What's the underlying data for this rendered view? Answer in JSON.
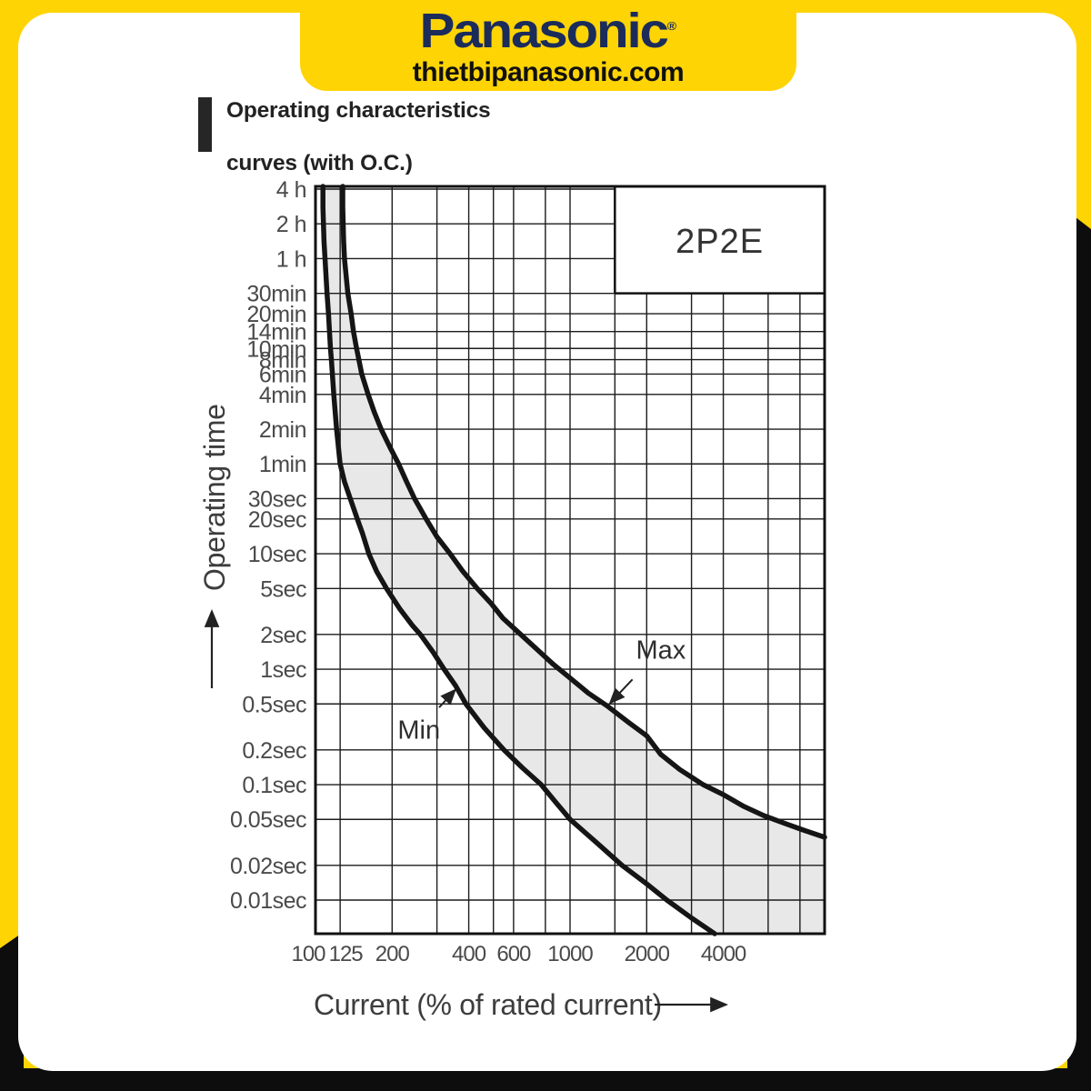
{
  "page": {
    "background_yellow": "#FFD405",
    "frame_black": "#0D0D0D",
    "card_white": "#FFFFFF"
  },
  "banner": {
    "brand": "Panasonic",
    "registered_mark": "®",
    "website": "thietbipanasonic.com",
    "brand_color": "#1B2C5B"
  },
  "section_title": {
    "line1": "Operating characteristics",
    "line2": "curves (with O.C.)"
  },
  "chart_data": {
    "type": "line",
    "model_box_label": "2P2E",
    "xlabel": "Current (% of rated current)",
    "ylabel": "Operating time",
    "x_scale": "log",
    "y_scale": "log",
    "x_min": 100,
    "x_max": 10000,
    "x_ticks_labeled": [
      {
        "label": "100",
        "value": 100
      },
      {
        "label": "125",
        "value": 125
      },
      {
        "label": "200",
        "value": 200
      },
      {
        "label": "400",
        "value": 400
      },
      {
        "label": "600",
        "value": 600
      },
      {
        "label": "1000",
        "value": 1000
      },
      {
        "label": "2000",
        "value": 2000
      },
      {
        "label": "4000",
        "value": 4000
      }
    ],
    "x_gridlines_minor": [
      300,
      500,
      800,
      1500,
      3000,
      6000,
      8000
    ],
    "y_ticks": [
      {
        "label": "4 h",
        "seconds": 14400
      },
      {
        "label": "2 h",
        "seconds": 7200
      },
      {
        "label": "1 h",
        "seconds": 3600
      },
      {
        "label": "30min",
        "seconds": 1800
      },
      {
        "label": "20min",
        "seconds": 1200
      },
      {
        "label": "14min",
        "seconds": 840
      },
      {
        "label": "10min",
        "seconds": 600
      },
      {
        "label": "8min",
        "seconds": 480
      },
      {
        "label": "6min",
        "seconds": 360
      },
      {
        "label": "4min",
        "seconds": 240
      },
      {
        "label": "2min",
        "seconds": 120
      },
      {
        "label": "1min",
        "seconds": 60
      },
      {
        "label": "30sec",
        "seconds": 30
      },
      {
        "label": "20sec",
        "seconds": 20
      },
      {
        "label": "10sec",
        "seconds": 10
      },
      {
        "label": "5sec",
        "seconds": 5
      },
      {
        "label": "2sec",
        "seconds": 2
      },
      {
        "label": "1sec",
        "seconds": 1
      },
      {
        "label": "0.5sec",
        "seconds": 0.5
      },
      {
        "label": "0.2sec",
        "seconds": 0.2
      },
      {
        "label": "0.1sec",
        "seconds": 0.1
      },
      {
        "label": "0.05sec",
        "seconds": 0.05
      },
      {
        "label": "0.02sec",
        "seconds": 0.02
      },
      {
        "label": "0.01sec",
        "seconds": 0.01
      }
    ],
    "model_box": {
      "label": "2P2E",
      "x_from_percent": 1500,
      "time_from_seconds": 1800
    },
    "band_fill": "#E8E8E8",
    "curve_color": "#151515",
    "series": [
      {
        "name": "Min",
        "points": [
          [
            107,
            15300
          ],
          [
            107,
            10000
          ],
          [
            108,
            5000
          ],
          [
            109,
            3600
          ],
          [
            111,
            1800
          ],
          [
            112.5,
            1200
          ],
          [
            113.5,
            840
          ],
          [
            114.5,
            600
          ],
          [
            115.5,
            480
          ],
          [
            116.5,
            360
          ],
          [
            118,
            240
          ],
          [
            121,
            120
          ],
          [
            125,
            60
          ],
          [
            130,
            42
          ],
          [
            137,
            30
          ],
          [
            146,
            20
          ],
          [
            153,
            15
          ],
          [
            162,
            10
          ],
          [
            174,
            7
          ],
          [
            190,
            5
          ],
          [
            215,
            3.3
          ],
          [
            240,
            2.4
          ],
          [
            258,
            2
          ],
          [
            290,
            1.4
          ],
          [
            320,
            1
          ],
          [
            355,
            0.72
          ],
          [
            390,
            0.5
          ],
          [
            460,
            0.31
          ],
          [
            550,
            0.2
          ],
          [
            650,
            0.14
          ],
          [
            770,
            0.1
          ],
          [
            880,
            0.07
          ],
          [
            1000,
            0.05
          ],
          [
            1280,
            0.031
          ],
          [
            1600,
            0.02
          ],
          [
            2000,
            0.0138
          ],
          [
            2400,
            0.01
          ],
          [
            3000,
            0.007
          ],
          [
            3700,
            0.0051
          ]
        ]
      },
      {
        "name": "Max",
        "points": [
          [
            128,
            15300
          ],
          [
            128,
            10000
          ],
          [
            129,
            5000
          ],
          [
            130,
            3600
          ],
          [
            134,
            1800
          ],
          [
            138,
            1200
          ],
          [
            141,
            840
          ],
          [
            145,
            600
          ],
          [
            148,
            480
          ],
          [
            152,
            360
          ],
          [
            161,
            240
          ],
          [
            170,
            170
          ],
          [
            181,
            120
          ],
          [
            196,
            84
          ],
          [
            212,
            60
          ],
          [
            228,
            42
          ],
          [
            245,
            30
          ],
          [
            272,
            20
          ],
          [
            300,
            14
          ],
          [
            338,
            10
          ],
          [
            380,
            7
          ],
          [
            432,
            5
          ],
          [
            490,
            3.7
          ],
          [
            545,
            2.76
          ],
          [
            640,
            2
          ],
          [
            750,
            1.45
          ],
          [
            860,
            1.1
          ],
          [
            1000,
            0.84
          ],
          [
            1180,
            0.62
          ],
          [
            1400,
            0.48
          ],
          [
            1700,
            0.345
          ],
          [
            2000,
            0.265
          ],
          [
            2270,
            0.183
          ],
          [
            2700,
            0.135
          ],
          [
            3330,
            0.1
          ],
          [
            4000,
            0.082
          ],
          [
            4800,
            0.065
          ],
          [
            5760,
            0.054
          ],
          [
            7000,
            0.046
          ],
          [
            8350,
            0.04
          ],
          [
            10000,
            0.035
          ]
        ]
      }
    ],
    "annotations": [
      {
        "label": "Max",
        "target_percent": 1400,
        "target_seconds": 0.48,
        "label_side": "above-right"
      },
      {
        "label": "Min",
        "target_percent": 360,
        "target_seconds": 0.69,
        "label_side": "below-left"
      }
    ]
  }
}
